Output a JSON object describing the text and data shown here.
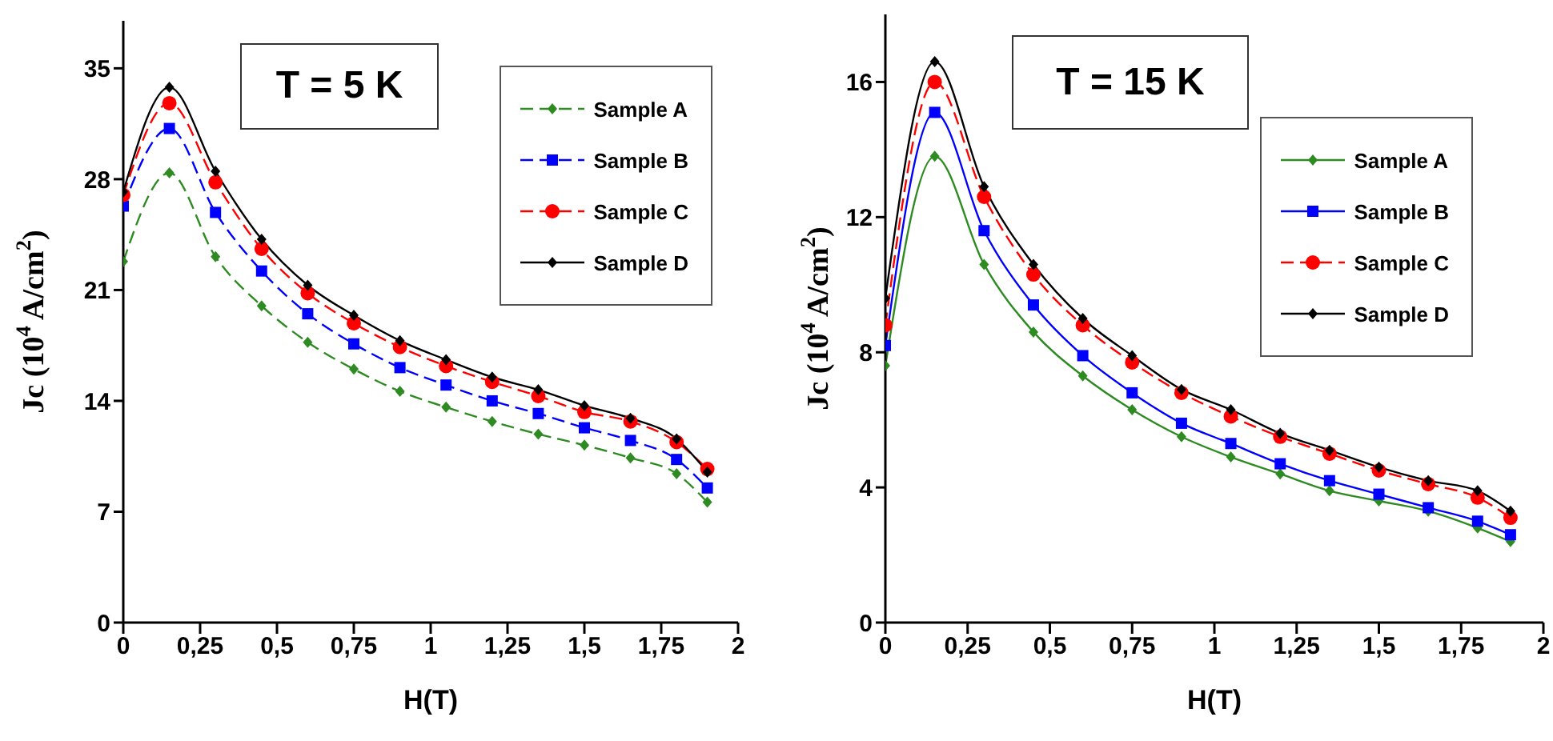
{
  "chart_data": [
    {
      "type": "line",
      "annotations": [
        "T = 5 K"
      ],
      "xlabel": "H(T)",
      "ylabel": "Jc (10$^{4}$ A/cm$^{2}$)",
      "x": [
        0,
        0.15,
        0.3,
        0.45,
        0.6,
        0.75,
        0.9,
        1.05,
        1.2,
        1.35,
        1.5,
        1.65,
        1.8,
        1.9
      ],
      "series": [
        {
          "name": "Sample A",
          "color": "#2e8b22",
          "marker": "diamond",
          "line_style": "dashed",
          "values": [
            22.8,
            28.4,
            23.1,
            20.0,
            17.7,
            16.0,
            14.6,
            13.6,
            12.7,
            11.9,
            11.2,
            10.4,
            9.4,
            7.6
          ]
        },
        {
          "name": "Sample B",
          "color": "#0000ff",
          "marker": "square",
          "line_style": "dashed",
          "values": [
            26.3,
            31.2,
            25.9,
            22.2,
            19.5,
            17.6,
            16.1,
            15.0,
            14.0,
            13.2,
            12.3,
            11.5,
            10.3,
            8.5
          ]
        },
        {
          "name": "Sample C",
          "color": "#ff0000",
          "marker": "circle",
          "line_style": "dashed",
          "values": [
            27.0,
            32.8,
            27.8,
            23.6,
            20.8,
            18.9,
            17.4,
            16.2,
            15.2,
            14.3,
            13.3,
            12.7,
            11.4,
            9.7
          ]
        },
        {
          "name": "Sample D",
          "color": "#000000",
          "marker": "diamond",
          "line_style": "solid",
          "values": [
            27.2,
            33.8,
            28.5,
            24.2,
            21.3,
            19.4,
            17.8,
            16.6,
            15.5,
            14.7,
            13.7,
            12.9,
            11.6,
            9.5
          ]
        }
      ],
      "xlim": [
        0,
        2
      ],
      "xticks": [
        0,
        {
          "value": 0.25,
          "label": "0,25"
        },
        {
          "value": 0.5,
          "label": "0,5"
        },
        {
          "value": 0.75,
          "label": "0,75"
        },
        1,
        {
          "value": 1.25,
          "label": "1,25"
        },
        {
          "value": 1.5,
          "label": "1,5"
        },
        {
          "value": 1.75,
          "label": "1,75"
        },
        2
      ],
      "ylim": [
        0,
        38
      ],
      "yticks": [
        0,
        7,
        14,
        21,
        28,
        35
      ],
      "grid": false,
      "legend": "top right"
    },
    {
      "type": "line",
      "annotations": [
        "T = 15 K"
      ],
      "xlabel": "H(T)",
      "ylabel": "Jc (10$^{4}$ A/cm$^{2}$)",
      "x": [
        0,
        0.15,
        0.3,
        0.45,
        0.6,
        0.75,
        0.9,
        1.05,
        1.2,
        1.35,
        1.5,
        1.65,
        1.8,
        1.9
      ],
      "series": [
        {
          "name": "Sample A",
          "color": "#2e8b22",
          "marker": "diamond",
          "line_style": "solid",
          "values": [
            7.6,
            13.8,
            10.6,
            8.6,
            7.3,
            6.3,
            5.5,
            4.9,
            4.4,
            3.9,
            3.6,
            3.3,
            2.8,
            2.4
          ]
        },
        {
          "name": "Sample B",
          "color": "#0000ff",
          "marker": "square",
          "line_style": "solid",
          "values": [
            8.2,
            15.1,
            11.6,
            9.4,
            7.9,
            6.8,
            5.9,
            5.3,
            4.7,
            4.2,
            3.8,
            3.4,
            3.0,
            2.6
          ]
        },
        {
          "name": "Sample C",
          "color": "#ff0000",
          "marker": "circle",
          "line_style": "dashed",
          "values": [
            8.8,
            16.0,
            12.6,
            10.3,
            8.8,
            7.7,
            6.8,
            6.1,
            5.5,
            5.0,
            4.5,
            4.1,
            3.7,
            3.1
          ]
        },
        {
          "name": "Sample D",
          "color": "#000000",
          "marker": "diamond",
          "line_style": "solid",
          "values": [
            9.6,
            16.6,
            12.9,
            10.6,
            9.0,
            7.9,
            6.9,
            6.3,
            5.6,
            5.1,
            4.6,
            4.2,
            3.9,
            3.3
          ]
        }
      ],
      "xlim": [
        0,
        2
      ],
      "xticks": [
        0,
        {
          "value": 0.25,
          "label": "0,25"
        },
        {
          "value": 0.5,
          "label": "0,5"
        },
        {
          "value": 0.75,
          "label": "0,75"
        },
        1,
        {
          "value": 1.25,
          "label": "1,25"
        },
        {
          "value": 1.5,
          "label": "1,5"
        },
        {
          "value": 1.75,
          "label": "1,75"
        },
        2
      ],
      "ylim": [
        0,
        18
      ],
      "yticks": [
        0,
        4,
        8,
        12,
        16
      ],
      "grid": false,
      "legend": "top right"
    }
  ]
}
